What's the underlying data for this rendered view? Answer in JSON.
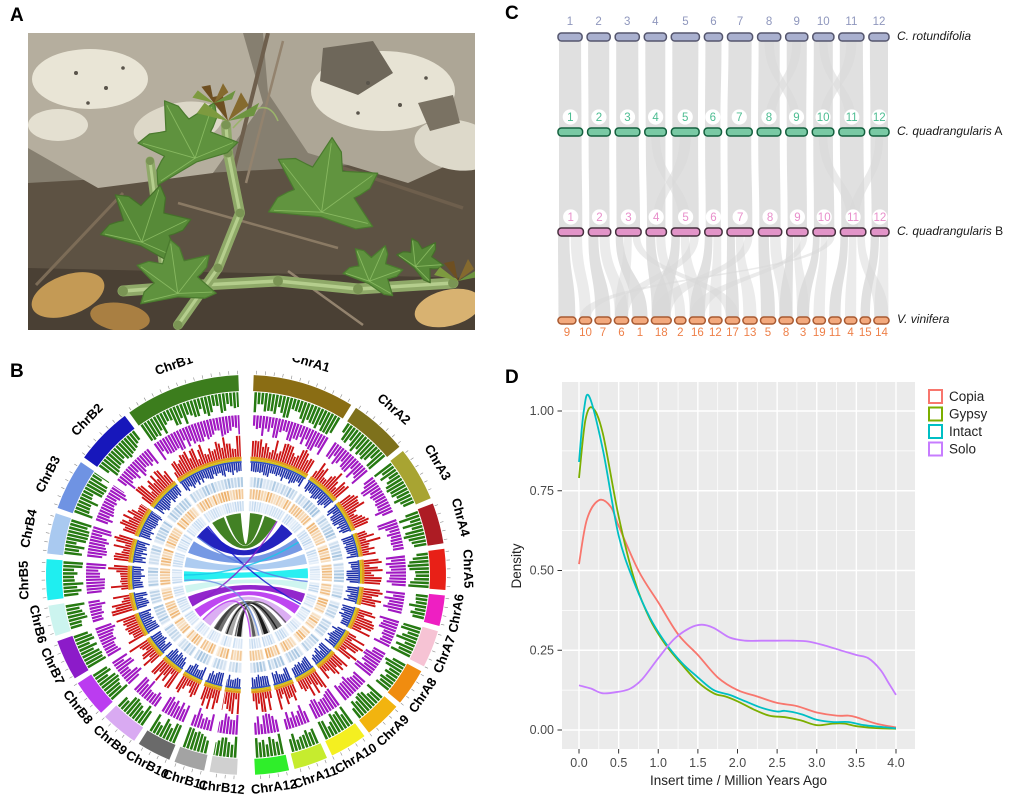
{
  "figure": {
    "background": "#ffffff",
    "panels": {
      "a": {
        "label": "A",
        "photo_alt": "Cissus plant with green lobed leaves and square fleshy stems growing over lichen-covered rocks"
      },
      "b": {
        "label": "B"
      },
      "c": {
        "label": "C"
      },
      "d": {
        "label": "D"
      }
    }
  },
  "chart_data": [
    {
      "panel": "B",
      "type": "circos",
      "description": "Circular genome plot of subgenomes A and B with density histogram tracks, heatmap tracks and central synteny ribbons",
      "tracks": [
        "chromosome-ideogram",
        "tick-scale",
        "green-histogram",
        "magenta-histogram",
        "red-histogram",
        "orange-gold-line-track",
        "blue-histogram",
        "light-blue-heatmap",
        "orange-heatmap",
        "pale-blue-heatmap",
        "center-synteny-ribbons"
      ],
      "chromosomes_a": [
        {
          "name": "ChrA1",
          "color": "#8a6d14",
          "size": 30
        },
        {
          "name": "ChrA2",
          "color": "#7e711c",
          "size": 17
        },
        {
          "name": "ChrA3",
          "color": "#a8a432",
          "size": 16
        },
        {
          "name": "ChrA4",
          "color": "#ad1c24",
          "size": 12
        },
        {
          "name": "ChrA5",
          "color": "#e82017",
          "size": 12
        },
        {
          "name": "ChrA6",
          "color": "#ee1fc2",
          "size": 9
        },
        {
          "name": "ChrA7",
          "color": "#f6c3d4",
          "size": 11
        },
        {
          "name": "ChrA8",
          "color": "#f08c0f",
          "size": 11
        },
        {
          "name": "ChrA9",
          "color": "#f2b40f",
          "size": 11
        },
        {
          "name": "ChrA10",
          "color": "#f4ef20",
          "size": 11
        },
        {
          "name": "ChrA11",
          "color": "#c6ec2e",
          "size": 10
        },
        {
          "name": "ChrA12",
          "color": "#2fee2a",
          "size": 10
        }
      ],
      "chromosomes_b": [
        {
          "name": "ChrB1",
          "color": "#3c7d1d",
          "size": 34
        },
        {
          "name": "ChrB2",
          "color": "#1717bb",
          "size": 17
        },
        {
          "name": "ChrB3",
          "color": "#6f93e3",
          "size": 15
        },
        {
          "name": "ChrB4",
          "color": "#a9c9f0",
          "size": 12
        },
        {
          "name": "ChrB5",
          "color": "#1feef0",
          "size": 12
        },
        {
          "name": "ChrB6",
          "color": "#ccf4ef",
          "size": 9
        },
        {
          "name": "ChrB7",
          "color": "#8c1bc9",
          "size": 12
        },
        {
          "name": "ChrB8",
          "color": "#bb3cf0",
          "size": 11
        },
        {
          "name": "ChrB9",
          "color": "#d9aaf2",
          "size": 11
        },
        {
          "name": "ChrB10",
          "color": "#6a6a6a",
          "size": 10
        },
        {
          "name": "ChrB11",
          "color": "#a3a3a3",
          "size": 9
        },
        {
          "name": "ChrB12",
          "color": "#d0d0d0",
          "size": 8
        }
      ]
    },
    {
      "panel": "C",
      "type": "synteny",
      "ribbon_color": "#d8d8d8",
      "rows": [
        {
          "species": "C. rotundifolia",
          "suffix": "",
          "fill": "#a9b0cf",
          "stroke": "#55566e",
          "num_color": "#8f97bd",
          "badges": false,
          "numbers": [
            "1",
            "2",
            "3",
            "4",
            "5",
            "6",
            "7",
            "8",
            "9",
            "10",
            "11",
            "12"
          ],
          "rel_widths": [
            24,
            23,
            24,
            22,
            28,
            18,
            25,
            23,
            22,
            21,
            25,
            20
          ]
        },
        {
          "species": "C. quadrangularis",
          "suffix": "A",
          "fill": "#79c9a4",
          "stroke": "#14603e",
          "num_color": "#4dbd92",
          "badges": true,
          "numbers": [
            "1",
            "2",
            "3",
            "4",
            "5",
            "6",
            "7",
            "8",
            "9",
            "10",
            "11",
            "12"
          ],
          "rel_widths": [
            24,
            22,
            24,
            21,
            27,
            17,
            25,
            23,
            21,
            21,
            25,
            19
          ]
        },
        {
          "species": "C. quadrangularis",
          "suffix": "B",
          "fill": "#e294c8",
          "stroke": "#46303e",
          "num_color": "#e88fcb",
          "badges": true,
          "numbers": [
            "1",
            "2",
            "3",
            "4",
            "5",
            "6",
            "7",
            "8",
            "9",
            "10",
            "11",
            "12"
          ],
          "rel_widths": [
            25,
            22,
            25,
            20,
            28,
            17,
            26,
            23,
            21,
            22,
            25,
            18
          ]
        },
        {
          "species": "V. vinifera",
          "suffix": "",
          "fill": "#f3a97d",
          "stroke": "#a85a32",
          "num_color": "#ee8049",
          "badges": false,
          "numbers": [
            "9",
            "10",
            "7",
            "6",
            "1",
            "18",
            "2",
            "16",
            "12",
            "17",
            "13",
            "5",
            "8",
            "3",
            "19",
            "11",
            "4",
            "15",
            "14"
          ],
          "rel_widths": [
            19,
            13,
            17,
            15,
            17,
            21,
            12,
            17,
            14,
            15,
            15,
            16,
            15,
            14,
            13,
            13,
            13,
            11,
            16
          ]
        }
      ],
      "links": {
        "row1_to_row2": {
          "main": "one-to-one",
          "crossing_pairs": [
            [
              8,
              9
            ],
            [
              9,
              8
            ],
            [
              10,
              11
            ],
            [
              11,
              10
            ]
          ]
        },
        "row2_to_row3": {
          "main": "one-to-one",
          "crossing_pairs": [
            [
              4,
              5
            ],
            [
              5,
              4
            ],
            [
              10,
              11
            ],
            [
              12,
              11
            ]
          ]
        },
        "row3_to_row4": {
          "mapping": [
            [
              1,
              [
                1,
                2
              ]
            ],
            [
              2,
              [
                3,
                4
              ]
            ],
            [
              3,
              [
                5,
                4,
                10
              ]
            ],
            [
              4,
              [
                6,
                7
              ]
            ],
            [
              5,
              [
                6,
                8,
                4
              ]
            ],
            [
              6,
              [
                8,
                9
              ]
            ],
            [
              7,
              [
                10,
                11,
                6
              ]
            ],
            [
              8,
              [
                12,
                13
              ]
            ],
            [
              9,
              [
                13,
                14,
                8
              ]
            ],
            [
              10,
              [
                14,
                15,
                2
              ]
            ],
            [
              11,
              [
                16,
                17,
                19
              ]
            ],
            [
              12,
              [
                18,
                19
              ]
            ]
          ]
        }
      }
    },
    {
      "panel": "D",
      "type": "line",
      "xlabel": "Insert time / Million Years Ago",
      "ylabel": "Density",
      "x_ticks": [
        "0.0",
        "0.5",
        "1.0",
        "1.5",
        "2.0",
        "2.5",
        "3.0",
        "3.5",
        "4.0"
      ],
      "y_ticks": [
        "0.00",
        "0.25",
        "0.50",
        "0.75",
        "1.00"
      ],
      "xlim": [
        -0.22,
        4.25
      ],
      "ylim": [
        -0.06,
        1.09
      ],
      "panel_background": "#ebebeb",
      "grid_color": "#ffffff",
      "legend_position": "top-right",
      "series": [
        {
          "name": "Copia",
          "color": "#F8766D",
          "x": [
            0,
            0.1,
            0.25,
            0.4,
            0.5,
            0.75,
            1.0,
            1.25,
            1.5,
            1.75,
            2.0,
            2.25,
            2.5,
            2.75,
            3.0,
            3.25,
            3.4,
            3.5,
            3.75,
            4.0
          ],
          "y": [
            0.52,
            0.66,
            0.72,
            0.7,
            0.64,
            0.5,
            0.4,
            0.3,
            0.235,
            0.165,
            0.125,
            0.105,
            0.085,
            0.075,
            0.055,
            0.045,
            0.045,
            0.04,
            0.02,
            0.008
          ]
        },
        {
          "name": "Gypsy",
          "color": "#7CAE00",
          "x": [
            0,
            0.08,
            0.17,
            0.3,
            0.5,
            0.7,
            0.9,
            1.1,
            1.3,
            1.5,
            1.7,
            1.85,
            2.0,
            2.2,
            2.4,
            2.6,
            2.8,
            3.0,
            3.2,
            3.35,
            3.5,
            3.75,
            4.0
          ],
          "y": [
            0.79,
            0.97,
            1.01,
            0.93,
            0.67,
            0.47,
            0.345,
            0.265,
            0.205,
            0.15,
            0.115,
            0.105,
            0.09,
            0.065,
            0.045,
            0.04,
            0.03,
            0.015,
            0.02,
            0.02,
            0.012,
            0.006,
            0.004
          ]
        },
        {
          "name": "Intact",
          "color": "#00BFC4",
          "x": [
            0,
            0.06,
            0.13,
            0.3,
            0.5,
            0.7,
            0.9,
            1.1,
            1.3,
            1.5,
            1.7,
            1.9,
            2.1,
            2.3,
            2.5,
            2.6,
            2.8,
            3.0,
            3.2,
            3.4,
            3.6,
            3.8,
            4.0
          ],
          "y": [
            0.84,
            1.0,
            1.045,
            0.88,
            0.61,
            0.46,
            0.35,
            0.27,
            0.21,
            0.165,
            0.125,
            0.11,
            0.09,
            0.07,
            0.058,
            0.06,
            0.05,
            0.032,
            0.025,
            0.025,
            0.015,
            0.01,
            0.005
          ]
        },
        {
          "name": "Solo",
          "color": "#C77CFF",
          "x": [
            0,
            0.15,
            0.3,
            0.5,
            0.65,
            0.8,
            1.0,
            1.2,
            1.4,
            1.55,
            1.7,
            1.9,
            2.1,
            2.3,
            2.5,
            2.7,
            2.9,
            3.1,
            3.3,
            3.5,
            3.65,
            3.8,
            3.9,
            4.0
          ],
          "y": [
            0.14,
            0.13,
            0.115,
            0.12,
            0.13,
            0.16,
            0.225,
            0.285,
            0.32,
            0.33,
            0.32,
            0.29,
            0.28,
            0.28,
            0.28,
            0.28,
            0.277,
            0.265,
            0.25,
            0.235,
            0.225,
            0.19,
            0.15,
            0.11
          ]
        }
      ]
    }
  ]
}
